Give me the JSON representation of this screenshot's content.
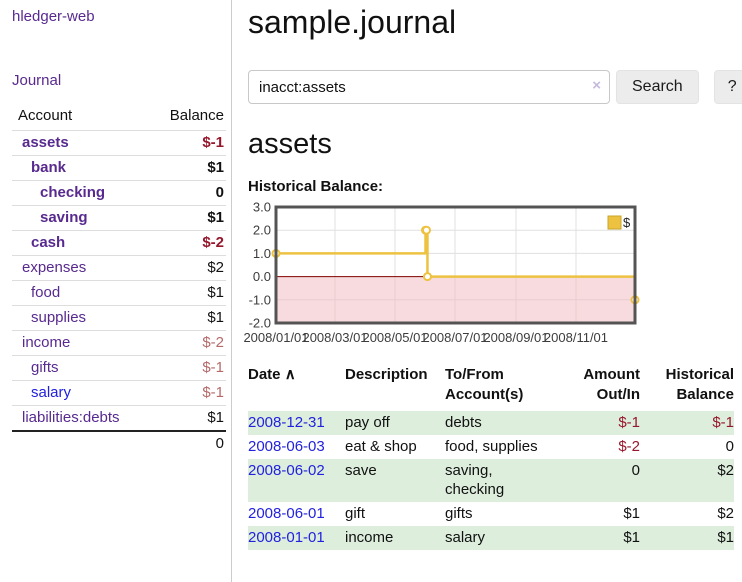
{
  "palette": {
    "link_purple": "#582a8f",
    "link_blue": "#2222dd",
    "neg_strong": "#96172b",
    "neg_soft": "#b56a6a",
    "row_green": "#ddeedd",
    "chart_line": "#edc240",
    "chart_neg_fill": "#f2b8bd",
    "zero_line": "#800000",
    "chart_border": "#545454",
    "btn_bg": "#ececec"
  },
  "app": {
    "brand": "hledger-web",
    "nav_journal": "Journal"
  },
  "sidebar": {
    "account_header": "Account",
    "balance_header": "Balance",
    "accounts": [
      {
        "name": "assets",
        "indent": 1,
        "bold": true,
        "balance": "$-1",
        "neg": "strong"
      },
      {
        "name": "bank",
        "indent": 2,
        "bold": true,
        "balance": "$1"
      },
      {
        "name": "checking",
        "indent": 3,
        "bold": true,
        "balance": "0"
      },
      {
        "name": "saving",
        "indent": 3,
        "bold": true,
        "balance": "$1"
      },
      {
        "name": "cash",
        "indent": 2,
        "bold": true,
        "balance": "$-2",
        "neg": "strong"
      },
      {
        "name": "expenses",
        "indent": 1,
        "bold": false,
        "balance": "$2"
      },
      {
        "name": "food",
        "indent": 2,
        "bold": false,
        "balance": "$1"
      },
      {
        "name": "supplies",
        "indent": 2,
        "bold": false,
        "balance": "$1"
      },
      {
        "name": "income",
        "indent": 1,
        "bold": false,
        "balance": "$-2",
        "neg": "soft"
      },
      {
        "name": "gifts",
        "indent": 2,
        "bold": false,
        "balance": "$-1",
        "neg": "soft"
      },
      {
        "name": "salary",
        "indent": 2,
        "bold": false,
        "balance": "$-1",
        "neg": "soft",
        "link_blue": true
      },
      {
        "name": "liabilities:debts",
        "indent": 1,
        "bold": false,
        "balance": "$1"
      }
    ],
    "total": "0"
  },
  "header": {
    "title": "sample.journal"
  },
  "search": {
    "value": "inacct:assets",
    "clear_icon": "×",
    "button_label": "Search",
    "help_label": "?"
  },
  "account_page": {
    "title": "assets",
    "chart_label": "Historical Balance:"
  },
  "chart_data": {
    "type": "line",
    "steps": true,
    "title": "Historical Balance",
    "legend": "$",
    "legend_position": "top-right",
    "xlim": [
      "2008-01-01",
      "2008-12-31"
    ],
    "ylim": [
      -2,
      3
    ],
    "grid": true,
    "series": [
      {
        "name": "$",
        "color": "#edc240",
        "points": [
          {
            "date": "2008-01-01",
            "value": 1
          },
          {
            "date": "2008-06-01",
            "value": 2
          },
          {
            "date": "2008-06-02",
            "value": 2
          },
          {
            "date": "2008-06-03",
            "value": 0
          },
          {
            "date": "2008-12-31",
            "value": -1
          }
        ]
      }
    ],
    "x_ticks": [
      {
        "label": "2008/01/01",
        "date": "2008-01-01"
      },
      {
        "label": "2008/03/01",
        "date": "2008-03-01"
      },
      {
        "label": "2008/05/01",
        "date": "2008-05-01"
      },
      {
        "label": "2008/07/01",
        "date": "2008-07-01"
      },
      {
        "label": "2008/09/01",
        "date": "2008-09-01"
      },
      {
        "label": "2008/11/01",
        "date": "2008-11-01"
      }
    ],
    "y_ticks": [
      {
        "label": "3.0",
        "value": 3
      },
      {
        "label": "2.0",
        "value": 2
      },
      {
        "label": "1.0",
        "value": 1
      },
      {
        "label": "0.0",
        "value": 0
      },
      {
        "label": "-1.0",
        "value": -1
      },
      {
        "label": "-2.0",
        "value": -2
      }
    ]
  },
  "register": {
    "headers": {
      "date": "Date",
      "sort_icon": "∧",
      "description": "Description",
      "accounts": "To/From Account(s)",
      "amount": "Amount Out/In",
      "balance": "Historical Balance"
    },
    "rows": [
      {
        "date": "2008-12-31",
        "description": "pay off",
        "accounts": "debts",
        "amount": "$-1",
        "amount_neg": true,
        "balance": "$-1",
        "balance_neg": true
      },
      {
        "date": "2008-06-03",
        "description": "eat & shop",
        "accounts": "food, supplies",
        "amount": "$-2",
        "amount_neg": true,
        "balance": "0",
        "balance_neg": false
      },
      {
        "date": "2008-06-02",
        "description": "save",
        "accounts": "saving, checking",
        "amount": "0",
        "amount_neg": false,
        "balance": "$2",
        "balance_neg": false
      },
      {
        "date": "2008-06-01",
        "description": "gift",
        "accounts": "gifts",
        "amount": "$1",
        "amount_neg": false,
        "balance": "$2",
        "balance_neg": false
      },
      {
        "date": "2008-01-01",
        "description": "income",
        "accounts": "salary",
        "amount": "$1",
        "amount_neg": false,
        "balance": "$1",
        "balance_neg": false
      }
    ]
  }
}
